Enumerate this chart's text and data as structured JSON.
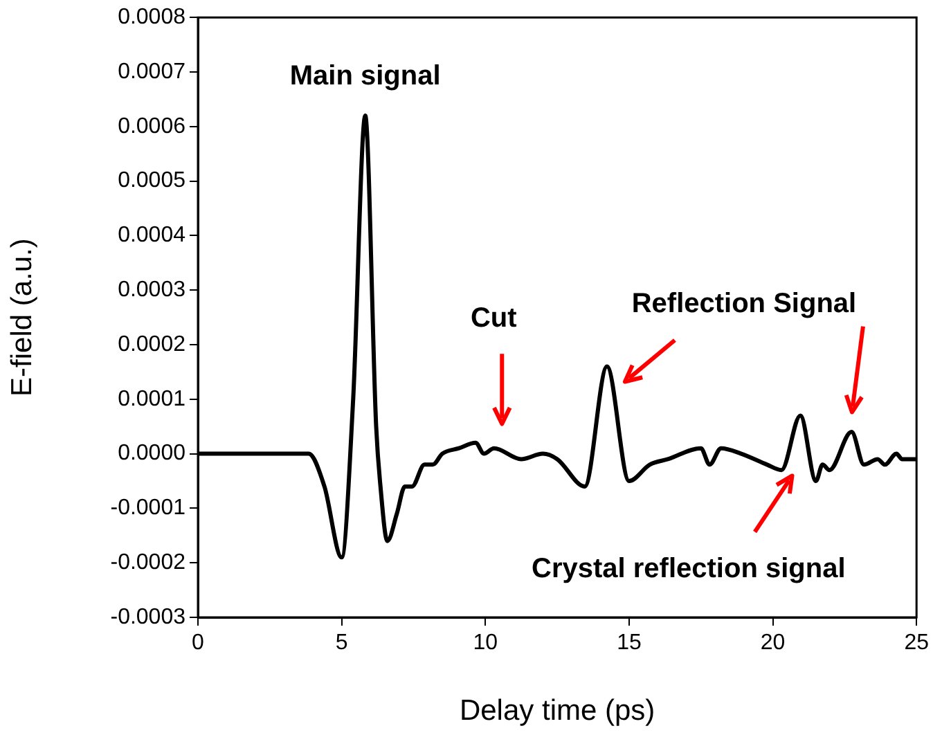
{
  "chart_data": {
    "type": "line",
    "xlabel": "Delay time (ps)",
    "ylabel": "E-field (a.u.)",
    "x": [
      0,
      1,
      2,
      3,
      3.85,
      4.4,
      5.0,
      5.4,
      5.82,
      6.2,
      6.35,
      6.59,
      6.92,
      7.2,
      7.45,
      7.88,
      8.17,
      8.5,
      9.08,
      9.66,
      9.95,
      10.3,
      11.25,
      12.0,
      12.5,
      13.46,
      14.23,
      15.0,
      15.72,
      16.35,
      17.5,
      17.8,
      18.2,
      18.9,
      19.8,
      20.3,
      20.96,
      21.5,
      21.73,
      21.97,
      22.74,
      23.17,
      23.65,
      23.9,
      24.3,
      24.5,
      25
    ],
    "series": [
      {
        "color": "#000000",
        "values": [
          0,
          0,
          0,
          0,
          0,
          -6e-05,
          -0.00019,
          0.0001,
          0.00062,
          5e-05,
          -6e-05,
          -0.00016,
          -0.00011,
          -6e-05,
          -6e-05,
          -2e-05,
          -2e-05,
          0,
          1e-05,
          2e-05,
          0,
          1e-05,
          -1e-05,
          0,
          -1e-05,
          -6e-05,
          0.00016,
          -5e-05,
          -2e-05,
          -1e-05,
          1e-05,
          -2e-05,
          1e-05,
          0,
          -2e-05,
          -3e-05,
          7e-05,
          -5e-05,
          -2e-05,
          -3e-05,
          4e-05,
          -2e-05,
          -1e-05,
          -2e-05,
          0,
          -1e-05,
          -1e-05
        ]
      }
    ],
    "xlim": [
      0,
      25
    ],
    "xticks": [
      0,
      5,
      10,
      15,
      20,
      25
    ],
    "ylim": [
      -0.0003,
      0.0008
    ],
    "yticks": [
      -0.0003,
      -0.0002,
      -0.0001,
      {
        "value": 0,
        "label": "0.0000"
      },
      0.0001,
      0.0002,
      0.0003,
      0.0004,
      0.0005,
      0.0006,
      0.0007,
      0.0008
    ],
    "grid": false,
    "legend": false,
    "marker": "none",
    "line_style": "solid",
    "annotations": [
      {
        "text": "Main signal",
        "x": 5.82,
        "y": 0.00062
      },
      "Cut",
      {
        "text": "Reflection Signal",
        "x": 14.23,
        "y": 0.00016
      },
      "Crystal reflection signal"
    ]
  }
}
